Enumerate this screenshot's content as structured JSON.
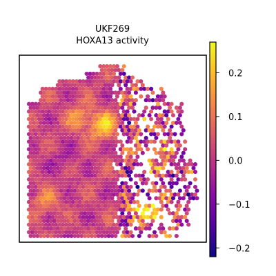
{
  "chart_data": {
    "type": "heatmap",
    "title_lines": [
      "UKF269",
      "HOXA13 activity"
    ],
    "xlabel": "",
    "ylabel": "",
    "grid": false,
    "colormap": "plasma",
    "colorbar": {
      "range": [
        -0.22,
        0.27
      ],
      "ticks": [
        0.2,
        0.1,
        0.0,
        -0.1,
        -0.2
      ],
      "tick_labels": [
        "0.2",
        "0.1",
        "0.0",
        "−0.1",
        "−0.2"
      ]
    },
    "colormap_stops": [
      "#0d0887",
      "#5402a3",
      "#8b0aa5",
      "#b93289",
      "#db5c68",
      "#f48849",
      "#febd2a",
      "#f0f921"
    ],
    "spot_grid": {
      "cols": 50,
      "rows": 46,
      "seed": 269
    },
    "hotspots": [
      {
        "cx": 0.45,
        "cy": 0.35,
        "v": 0.2
      },
      {
        "cx": 0.3,
        "cy": 0.3,
        "v": 0.12
      },
      {
        "cx": 0.8,
        "cy": 0.55,
        "v": 0.15
      },
      {
        "cx": 0.7,
        "cy": 0.85,
        "v": 0.25
      },
      {
        "cx": 0.1,
        "cy": 0.8,
        "v": 0.1
      },
      {
        "cx": 0.9,
        "cy": 0.7,
        "v": -0.15
      },
      {
        "cx": 0.62,
        "cy": 0.7,
        "v": -0.12
      },
      {
        "cx": 0.2,
        "cy": 0.55,
        "v": -0.05
      }
    ]
  }
}
